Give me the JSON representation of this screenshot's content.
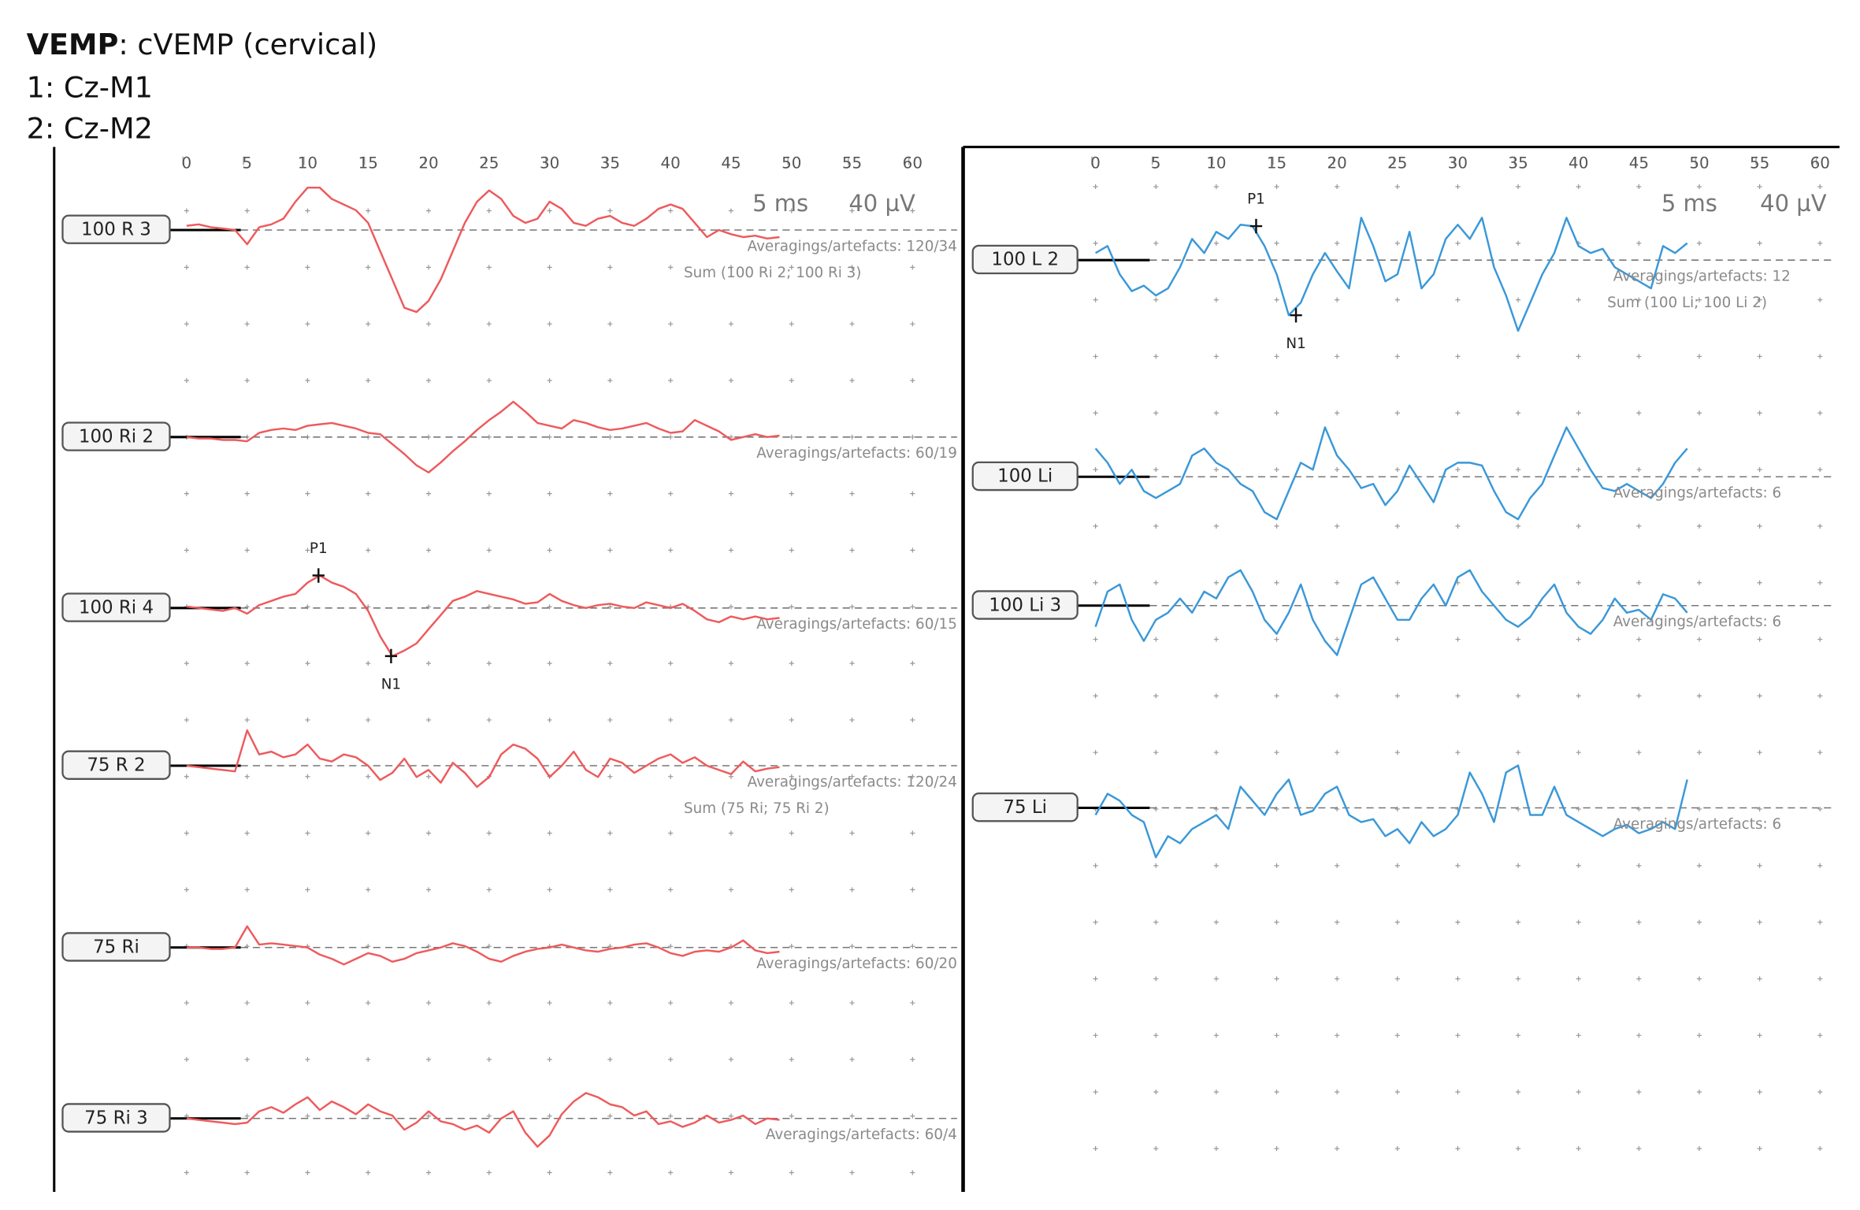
{
  "header": {
    "title": "VEMP",
    "subtitle": ": cVEMP (cervical)",
    "channels": [
      "1: Cz-M1",
      "2: Cz-M2"
    ]
  },
  "x": [
    0,
    1,
    2,
    3,
    4,
    5,
    6,
    7,
    8,
    9,
    10,
    11,
    12,
    13,
    14,
    15,
    16,
    17,
    18,
    19,
    20,
    21,
    22,
    23,
    24,
    25,
    26,
    27,
    28,
    29,
    30,
    31,
    32,
    33,
    34,
    35,
    36,
    37,
    38,
    39,
    40,
    41,
    42,
    43,
    44,
    45,
    46,
    47,
    48,
    49
  ],
  "panels": [
    {
      "xticks": [
        0,
        5,
        10,
        15,
        20,
        25,
        30,
        35,
        40,
        45,
        50,
        55,
        60
      ],
      "scale_time": "5 ms",
      "scale_amp": "40 µV",
      "color": "#ee5a5c",
      "traces": [
        {
          "label": "100 R 3",
          "info": [
            "Averagings/artefacts: 120/34",
            "Sum (100 Ri 2; 100 Ri 3)"
          ],
          "values": [
            3,
            4,
            2,
            1,
            0,
            -10,
            2,
            4,
            8,
            20,
            30,
            30,
            22,
            18,
            14,
            5,
            -15,
            -35,
            -55,
            -58,
            -50,
            -35,
            -15,
            5,
            20,
            28,
            22,
            10,
            5,
            8,
            20,
            15,
            5,
            3,
            8,
            10,
            5,
            3,
            8,
            15,
            18,
            15,
            5,
            -5,
            0,
            -3,
            -5,
            -4,
            -6,
            -5
          ]
        },
        {
          "label": "100 Ri 2",
          "info": [
            "Averagings/artefacts: 60/19"
          ],
          "values": [
            0,
            -1,
            -1,
            -2,
            -2,
            -3,
            3,
            5,
            6,
            5,
            8,
            9,
            10,
            8,
            6,
            3,
            2,
            -5,
            -12,
            -20,
            -25,
            -18,
            -10,
            -3,
            5,
            12,
            18,
            25,
            18,
            10,
            8,
            6,
            12,
            10,
            7,
            5,
            6,
            8,
            10,
            6,
            3,
            4,
            12,
            8,
            4,
            -2,
            0,
            2,
            0,
            1
          ]
        },
        {
          "label": "100 Ri 4",
          "info": [
            "Averagings/artefacts: 60/15"
          ],
          "values": [
            1,
            0,
            -1,
            -2,
            0,
            -4,
            2,
            5,
            8,
            10,
            18,
            23,
            18,
            15,
            10,
            -2,
            -20,
            -34,
            -30,
            -25,
            -15,
            -5,
            5,
            8,
            12,
            10,
            8,
            6,
            3,
            4,
            10,
            5,
            2,
            0,
            2,
            3,
            1,
            0,
            4,
            2,
            0,
            3,
            -2,
            -8,
            -10,
            -6,
            -8,
            -6,
            -8,
            -7
          ],
          "peaks": [
            {
              "label": "P1",
              "x": 10.9,
              "y": 23
            },
            {
              "label": "N1",
              "x": 16.9,
              "y": -34
            }
          ]
        },
        {
          "label": "75 R 2",
          "info": [
            "Averagings/artefacts: 120/24",
            "Sum (75 Ri; 75 Ri 2)"
          ],
          "values": [
            0,
            -1,
            -2,
            -3,
            -4,
            25,
            8,
            10,
            6,
            8,
            15,
            5,
            3,
            8,
            6,
            0,
            -10,
            -5,
            5,
            -8,
            -3,
            -12,
            2,
            -5,
            -15,
            -8,
            8,
            15,
            12,
            5,
            -8,
            0,
            10,
            -3,
            -8,
            5,
            2,
            -5,
            0,
            5,
            8,
            2,
            6,
            0,
            -3,
            -6,
            3,
            -4,
            -2,
            -1
          ]
        },
        {
          "label": "75 Ri",
          "info": [
            "Averagings/artefacts: 60/20"
          ],
          "values": [
            0,
            0,
            -1,
            -1,
            0,
            15,
            2,
            3,
            2,
            1,
            0,
            -5,
            -8,
            -12,
            -8,
            -4,
            -6,
            -10,
            -8,
            -4,
            -2,
            0,
            3,
            1,
            -3,
            -8,
            -10,
            -6,
            -3,
            -1,
            0,
            2,
            0,
            -2,
            -3,
            -1,
            0,
            2,
            3,
            0,
            -4,
            -6,
            -3,
            -2,
            -3,
            0,
            5,
            -2,
            -4,
            -3
          ]
        },
        {
          "label": "75 Ri 3",
          "info": [
            "Averagings/artefacts: 60/4"
          ],
          "values": [
            0,
            -1,
            -2,
            -3,
            -4,
            -3,
            5,
            8,
            4,
            10,
            15,
            6,
            12,
            8,
            3,
            10,
            5,
            2,
            -8,
            -3,
            5,
            -2,
            -4,
            -8,
            -5,
            -10,
            0,
            5,
            -10,
            -20,
            -12,
            3,
            12,
            18,
            15,
            10,
            8,
            2,
            5,
            -4,
            -2,
            -6,
            -3,
            2,
            -3,
            -1,
            2,
            -4,
            0,
            -1
          ]
        }
      ]
    },
    {
      "xticks": [
        0,
        5,
        10,
        15,
        20,
        25,
        30,
        35,
        40,
        45,
        50,
        55,
        60
      ],
      "scale_time": "5 ms",
      "scale_amp": "40 µV",
      "color": "#3a98d8",
      "traces": [
        {
          "label": "100 L 2",
          "info": [
            "Averagings/artefacts: 12",
            "Sum (100 Li; 100 Li 2)"
          ],
          "values": [
            5,
            10,
            -10,
            -22,
            -18,
            -25,
            -20,
            -5,
            15,
            5,
            20,
            15,
            25,
            24,
            10,
            -10,
            -39,
            -30,
            -10,
            5,
            -8,
            -20,
            30,
            10,
            -15,
            -10,
            20,
            -20,
            -10,
            15,
            25,
            15,
            30,
            -5,
            -25,
            -50,
            -30,
            -10,
            5,
            30,
            10,
            5,
            8,
            -5,
            -10,
            -15,
            -20,
            10,
            5,
            12
          ],
          "peaks": [
            {
              "label": "P1",
              "x": 13.3,
              "y": 24
            },
            {
              "label": "N1",
              "x": 16.6,
              "y": -39
            }
          ]
        },
        {
          "label": "100 Li",
          "info": [
            "Averagings/artefacts: 6"
          ],
          "values": [
            20,
            10,
            -5,
            5,
            -10,
            -15,
            -10,
            -5,
            15,
            20,
            10,
            5,
            -5,
            -10,
            -25,
            -30,
            -10,
            10,
            5,
            35,
            15,
            5,
            -8,
            -5,
            -20,
            -10,
            8,
            -5,
            -18,
            5,
            10,
            10,
            8,
            -10,
            -25,
            -30,
            -15,
            -5,
            15,
            35,
            20,
            5,
            -8,
            -10,
            -5,
            -10,
            -15,
            -5,
            10,
            20
          ]
        },
        {
          "label": "100 Li 3",
          "info": [
            "Averagings/artefacts: 6"
          ],
          "values": [
            -15,
            10,
            15,
            -10,
            -25,
            -10,
            -5,
            5,
            -5,
            10,
            5,
            20,
            25,
            10,
            -10,
            -20,
            -5,
            15,
            -10,
            -25,
            -35,
            -10,
            15,
            20,
            5,
            -10,
            -10,
            5,
            15,
            0,
            20,
            25,
            10,
            0,
            -10,
            -15,
            -8,
            5,
            15,
            -5,
            -15,
            -20,
            -10,
            5,
            -5,
            -3,
            -10,
            8,
            5,
            -5
          ]
        },
        {
          "label": "75 Li",
          "info": [
            "Averagings/artefacts: 6"
          ],
          "values": [
            -5,
            10,
            5,
            -5,
            -10,
            -35,
            -20,
            -25,
            -15,
            -10,
            -5,
            -15,
            15,
            5,
            -5,
            10,
            20,
            -5,
            -2,
            10,
            15,
            -5,
            -10,
            -8,
            -20,
            -15,
            -25,
            -10,
            -20,
            -15,
            -5,
            25,
            10,
            -10,
            25,
            30,
            -5,
            -5,
            15,
            -5,
            -10,
            -15,
            -20,
            -15,
            -12,
            -18,
            -15,
            -10,
            -15,
            20
          ]
        }
      ]
    }
  ]
}
